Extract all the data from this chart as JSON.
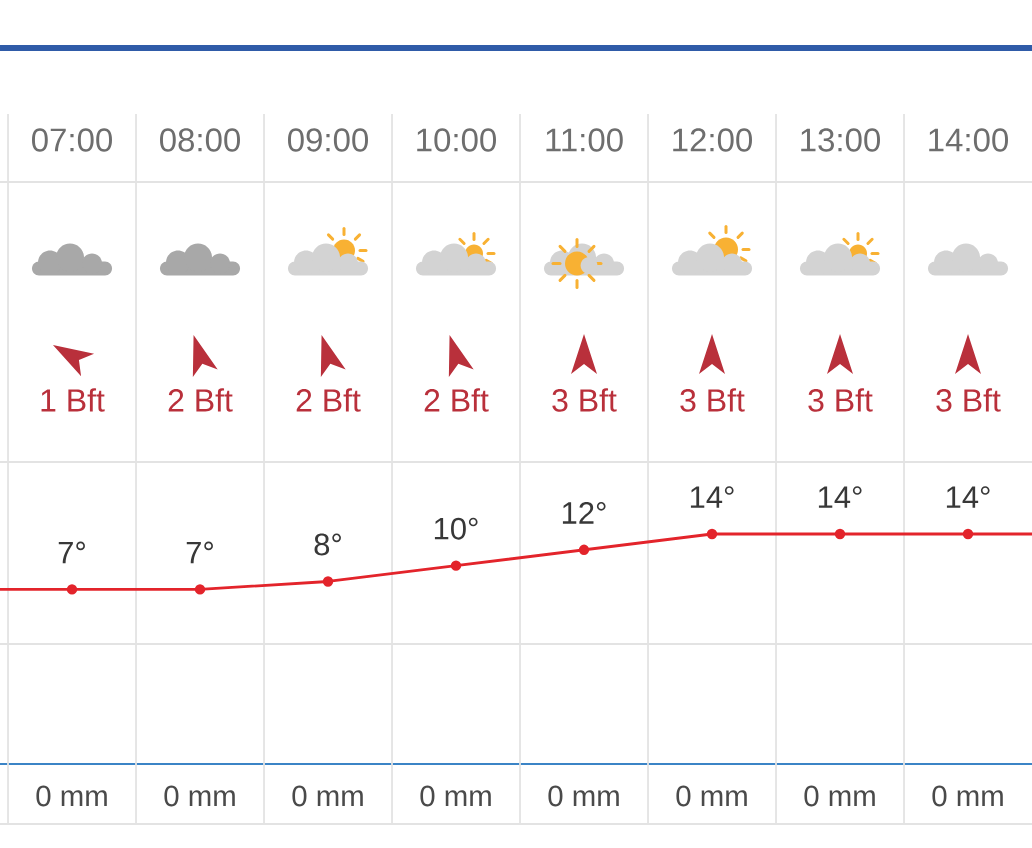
{
  "chart_data": {
    "type": "line",
    "categories": [
      null,
      "07:00",
      "08:00",
      "09:00",
      "10:00",
      "11:00",
      "12:00",
      "13:00",
      "14:00",
      null
    ],
    "values": [
      7,
      7,
      7,
      8,
      10,
      12,
      14,
      14,
      14,
      14
    ],
    "color": "#e3242b",
    "marker": "circle",
    "value_labels": [
      null,
      "7°",
      "7°",
      "8°",
      "10°",
      "12°",
      "14°",
      "14°",
      "14°",
      null
    ],
    "annotations": [
      "1 Bft",
      "2 Bft",
      "2 Bft",
      "2 Bft",
      "3 Bft",
      "3 Bft",
      "3 Bft",
      "3 Bft",
      "0 mm",
      "0 mm",
      "0 mm",
      "0 mm",
      "0 mm",
      "0 mm",
      "0 mm",
      "0 mm"
    ]
  }
}
